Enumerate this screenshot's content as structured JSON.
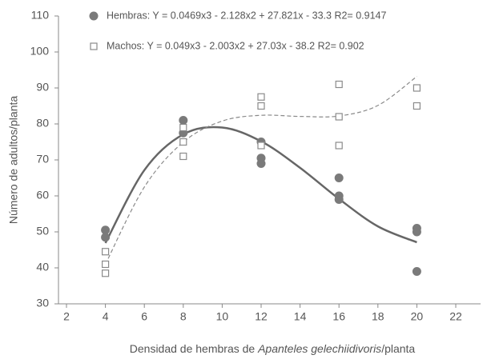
{
  "chart_data": {
    "type": "scatter",
    "xlabel": [
      "Densidad de hembras de ",
      "Apanteles gelechiidivoris",
      "/planta"
    ],
    "ylabel": "Número de adultos/planta",
    "xlim": [
      2,
      22
    ],
    "xticks": [
      2,
      4,
      6,
      8,
      10,
      12,
      14,
      16,
      18,
      20,
      22
    ],
    "ylim": [
      30,
      110
    ],
    "yticks": [
      30,
      40,
      50,
      60,
      70,
      80,
      90,
      100,
      110
    ],
    "series": [
      {
        "name": "Hembras: Y = 0.0469x3 - 2.128x2 + 27.821x - 33.3 R2= 0.9147",
        "color": "#7a7a7a",
        "marker": "circle",
        "x": [
          4,
          4,
          8,
          8,
          12,
          12,
          12,
          16,
          16,
          16,
          20,
          20,
          20
        ],
        "values": [
          50.5,
          48.5,
          81,
          77.5,
          75,
          70.5,
          69,
          65,
          60,
          59,
          51,
          50,
          39
        ],
        "trend": {
          "x": [
            4,
            6,
            8,
            10,
            12,
            14,
            16,
            18,
            20
          ],
          "values": [
            46.9,
            67.15,
            77.1,
            79.0,
            75.16,
            67.8,
            59.17,
            51.53,
            47.1
          ],
          "color": "#666666",
          "dash": false
        }
      },
      {
        "name": "Machos: Y = 0.049x3 - 2.003x2 + 27.03x - 38.2 R2= 0.902",
        "color": "#8a8a8a",
        "marker": "square",
        "x": [
          4,
          4,
          4,
          8,
          8,
          8,
          12,
          12,
          12,
          16,
          16,
          16,
          20,
          20
        ],
        "values": [
          44.5,
          41,
          38.5,
          79,
          75,
          71,
          87.5,
          85,
          74,
          91,
          82,
          74,
          90,
          85
        ],
        "trend": {
          "x": [
            4,
            6,
            8,
            10,
            12,
            14,
            16,
            18,
            20
          ],
          "values": [
            41.0,
            62.45,
            74.94,
            80.8,
            82.4,
            82.09,
            82.21,
            85.14,
            93.2
          ],
          "color": "#8a8a8a",
          "dash": true
        }
      }
    ]
  }
}
